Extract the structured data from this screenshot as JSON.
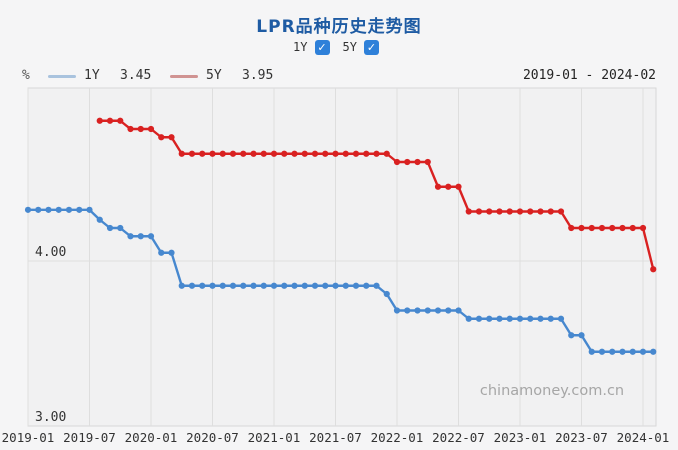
{
  "header": {
    "title": "LPR品种历史走势图",
    "accent_color": "#2e80d9",
    "series_toggles": [
      {
        "label": "1Y",
        "checked": true
      },
      {
        "label": "5Y",
        "checked": true
      }
    ],
    "unit_label": "%",
    "date_range": "2019-01 - 2024-02",
    "legend": [
      {
        "name": "1Y",
        "value": "3.45",
        "swatch_color": "#a9c3de"
      },
      {
        "name": "5Y",
        "value": "3.95",
        "swatch_color": "#d09392"
      }
    ]
  },
  "watermark": "chinamoney.com.cn",
  "chart_data": {
    "type": "line",
    "title": "LPR品种历史走势图",
    "xlabel": "",
    "ylabel": "%",
    "x_range": [
      "2019-01",
      "2024-02"
    ],
    "x_tick_labels": [
      "2019-01",
      "2019-07",
      "2020-01",
      "2020-07",
      "2021-01",
      "2021-07",
      "2022-01",
      "2022-07",
      "2023-01",
      "2023-07",
      "2024-01"
    ],
    "months_between_ticks": 6,
    "ylim": [
      3.0,
      5.05
    ],
    "y_gridlines": [
      4.0,
      3.0
    ],
    "y_gridline_labels": [
      "4.00",
      "3.00"
    ],
    "grid": true,
    "legend_position": "top-left",
    "series": [
      {
        "name": "1Y",
        "color": "#4788cf",
        "start_month": "2019-01",
        "start_offset_months": 0,
        "latest_value": 3.45,
        "values": [
          4.31,
          4.31,
          4.31,
          4.31,
          4.31,
          4.31,
          4.31,
          4.25,
          4.2,
          4.2,
          4.15,
          4.15,
          4.15,
          4.05,
          4.05,
          3.85,
          3.85,
          3.85,
          3.85,
          3.85,
          3.85,
          3.85,
          3.85,
          3.85,
          3.85,
          3.85,
          3.85,
          3.85,
          3.85,
          3.85,
          3.85,
          3.85,
          3.85,
          3.85,
          3.85,
          3.8,
          3.7,
          3.7,
          3.7,
          3.7,
          3.7,
          3.7,
          3.7,
          3.65,
          3.65,
          3.65,
          3.65,
          3.65,
          3.65,
          3.65,
          3.65,
          3.65,
          3.65,
          3.55,
          3.55,
          3.45,
          3.45,
          3.45,
          3.45,
          3.45,
          3.45,
          3.45
        ]
      },
      {
        "name": "5Y",
        "color": "#d92121",
        "start_month": "2019-08",
        "start_offset_months": 7,
        "latest_value": 3.95,
        "values": [
          4.85,
          4.85,
          4.85,
          4.8,
          4.8,
          4.8,
          4.75,
          4.75,
          4.65,
          4.65,
          4.65,
          4.65,
          4.65,
          4.65,
          4.65,
          4.65,
          4.65,
          4.65,
          4.65,
          4.65,
          4.65,
          4.65,
          4.65,
          4.65,
          4.65,
          4.65,
          4.65,
          4.65,
          4.65,
          4.6,
          4.6,
          4.6,
          4.6,
          4.45,
          4.45,
          4.45,
          4.3,
          4.3,
          4.3,
          4.3,
          4.3,
          4.3,
          4.3,
          4.3,
          4.3,
          4.3,
          4.2,
          4.2,
          4.2,
          4.2,
          4.2,
          4.2,
          4.2,
          4.2,
          3.95
        ]
      }
    ]
  }
}
